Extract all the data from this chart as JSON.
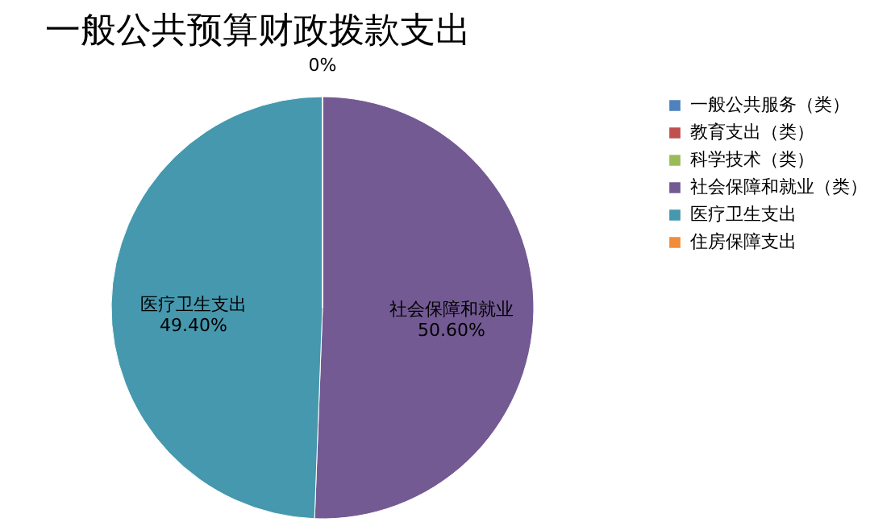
{
  "chart_data": {
    "type": "pie",
    "title": "一般公共预算财政拨款支出",
    "categories": [
      "一般公共服务（类）",
      "教育支出（类）",
      "科学技术（类）",
      "社会保障和就业（类）",
      "医疗卫生支出",
      "住房保障支出"
    ],
    "values": [
      0,
      0,
      0,
      50.6,
      49.4,
      0
    ],
    "colors": [
      "#4f81bd",
      "#c0504d",
      "#9bbb59",
      "#735a93",
      "#4598ae",
      "#f08c3a"
    ],
    "value_labels": [
      "0%",
      null,
      null,
      "社会保障和就业\n50.60%",
      "医疗卫生支出\n49.40%",
      null
    ],
    "legend": "right"
  }
}
